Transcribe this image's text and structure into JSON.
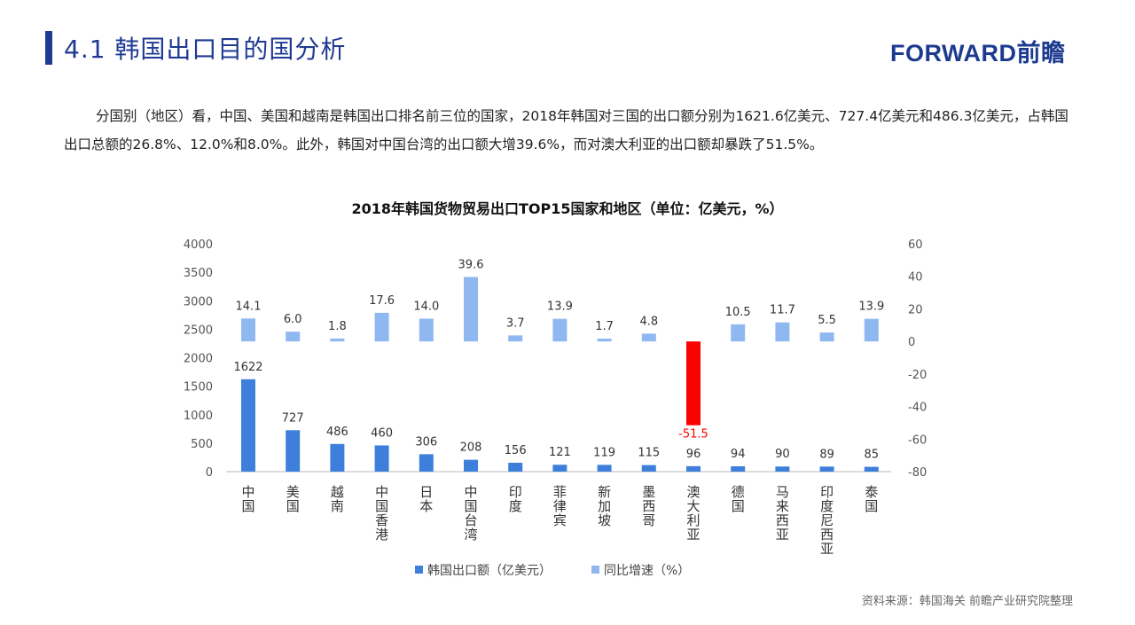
{
  "header": {
    "title": "4.1 韩国出口目的国分析",
    "logo": "FORWARD前瞻"
  },
  "paragraph": "分国别（地区）看，中国、美国和越南是韩国出口排名前三位的国家，2018年韩国对三国的出口额分别为1621.6亿美元、727.4亿美元和486.3亿美元，占韩国出口总额的26.8%、12.0%和8.0%。此外，韩国对中国台湾的出口额大增39.6%，而对澳大利亚的出口额却暴跌了51.5%。",
  "source": "资料来源：韩国海关   前瞻产业研究院整理",
  "chart_data": {
    "type": "bar",
    "title": "2018年韩国货物贸易出口TOP15国家和地区（单位：亿美元，%）",
    "categories": [
      "中国",
      "美国",
      "越南",
      "中国香港",
      "日本",
      "中国台湾",
      "印度",
      "菲律宾",
      "新加坡",
      "墨西哥",
      "澳大利亚",
      "德国",
      "马来西亚",
      "印度尼西亚",
      "泰国"
    ],
    "series": [
      {
        "name": "韩国出口额（亿美元）",
        "axis": "left",
        "color": "#3f7fdc",
        "values": [
          1622,
          727,
          486,
          460,
          306,
          208,
          156,
          121,
          119,
          115,
          96,
          94,
          90,
          89,
          85
        ]
      },
      {
        "name": "同比增速（%）",
        "axis": "right",
        "color": "#8fb8f0",
        "negative_color": "#ff0000",
        "values": [
          14.1,
          6.0,
          1.8,
          17.6,
          14.0,
          39.6,
          3.7,
          13.9,
          1.7,
          4.8,
          -51.5,
          10.5,
          11.7,
          5.5,
          13.9
        ]
      }
    ],
    "left_axis": {
      "min": 0,
      "max": 4000,
      "ticks": [
        0,
        500,
        1000,
        1500,
        2000,
        2500,
        3000,
        3500,
        4000
      ]
    },
    "right_axis": {
      "min": -80,
      "max": 60,
      "ticks": [
        -80,
        -60,
        -40,
        -20,
        0,
        20,
        40,
        60
      ]
    },
    "legend_position": "bottom",
    "grid": false
  }
}
